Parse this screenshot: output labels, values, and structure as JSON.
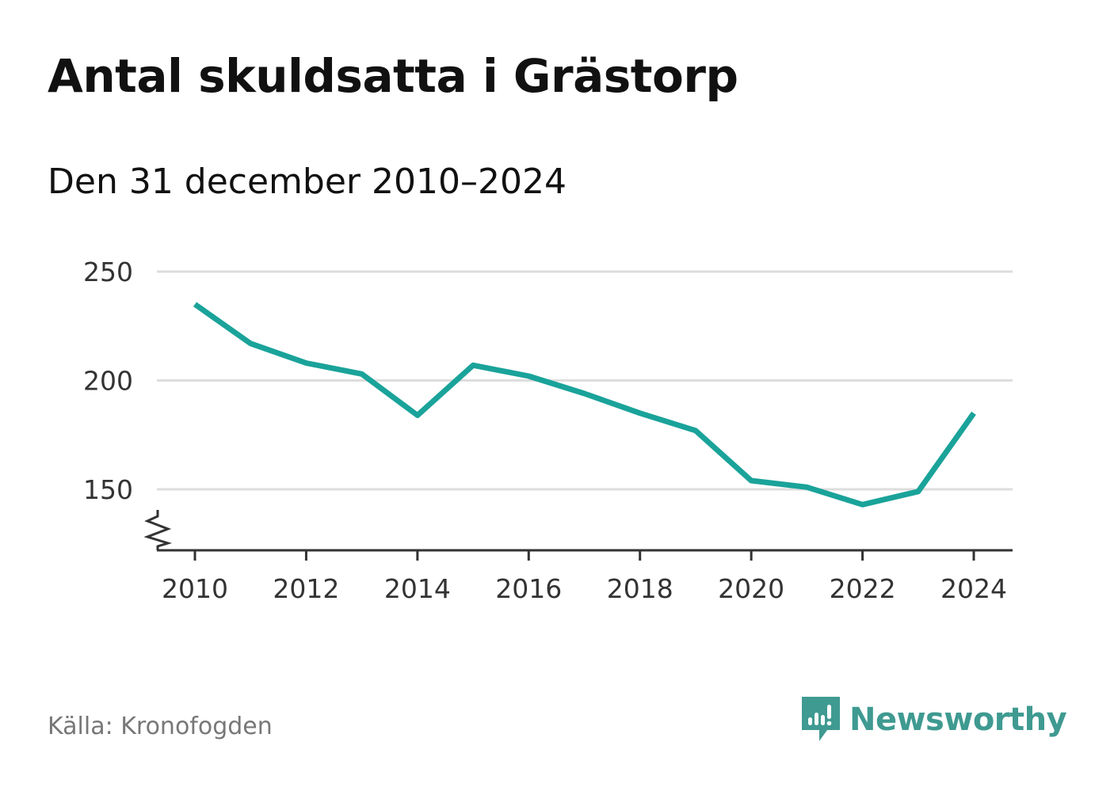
{
  "header": {
    "title": "Antal skuldsatta i Grästorp",
    "subtitle": "Den 31 december 2010–2024"
  },
  "footer": {
    "source": "Källa: Kronofogden",
    "brand": "Newsworthy"
  },
  "colors": {
    "line": "#1aa39a",
    "grid": "#dddddd",
    "axis": "#333333",
    "brand": "#3f9a91"
  },
  "icons": {
    "axis_break": "axis-break-icon",
    "brand_logo": "newsworthy-logo-icon"
  },
  "chart_data": {
    "type": "line",
    "title": "Antal skuldsatta i Grästorp",
    "subtitle": "Den 31 december 2010–2024",
    "xlabel": "",
    "ylabel": "",
    "x": [
      2010,
      2011,
      2012,
      2013,
      2014,
      2015,
      2016,
      2017,
      2018,
      2019,
      2020,
      2021,
      2022,
      2023,
      2024
    ],
    "series": [
      {
        "name": "Antal skuldsatta",
        "values": [
          235,
          217,
          208,
          203,
          184,
          207,
          202,
          194,
          185,
          177,
          154,
          151,
          143,
          149,
          185
        ]
      }
    ],
    "yticks": [
      150,
      200,
      250
    ],
    "xticks": [
      2010,
      2012,
      2014,
      2016,
      2018,
      2020,
      2022,
      2024
    ],
    "ylim": [
      122,
      250
    ],
    "xlim": [
      2010,
      2024
    ],
    "y_axis_break": true,
    "grid": true,
    "legend": "none"
  }
}
